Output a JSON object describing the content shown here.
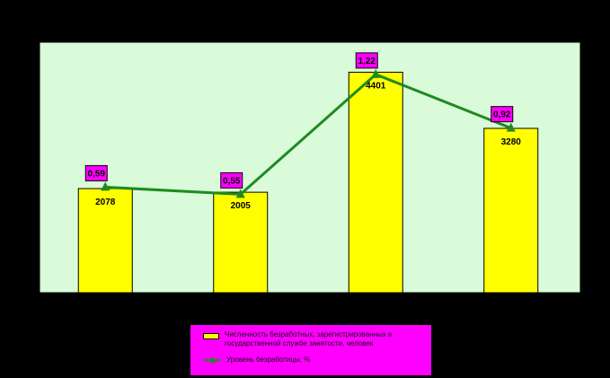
{
  "chart_data": {
    "type": "bar",
    "categories": [
      "",
      "",
      "",
      ""
    ],
    "series": [
      {
        "name": "Численность безработных, зарегистрированных в государственной службе занятости, человек",
        "type": "bar",
        "values": [
          2078,
          2005,
          4401,
          3280
        ],
        "labels": [
          "2078",
          "2005",
          "4401",
          "3280"
        ],
        "color": "#ffff00"
      },
      {
        "name": "Уровень безработицы, %",
        "type": "line",
        "values": [
          0.59,
          0.55,
          1.22,
          0.92
        ],
        "labels": [
          "0,59",
          "0,55",
          "1,22",
          "0,92"
        ],
        "color": "#1f8a1f"
      }
    ],
    "ylim_bars": [
      0,
      5000
    ],
    "ylim_line": [
      0,
      1.4
    ],
    "grid": false,
    "plot_background": "#d9fbd9",
    "label_box_color": "#ff00ff",
    "legend_position": "bottom"
  },
  "legend": {
    "bar_label": "Численность безработных, зарегистрированных в государственной службе занятости, человек",
    "line_label": "Уровень безработицы, %"
  }
}
